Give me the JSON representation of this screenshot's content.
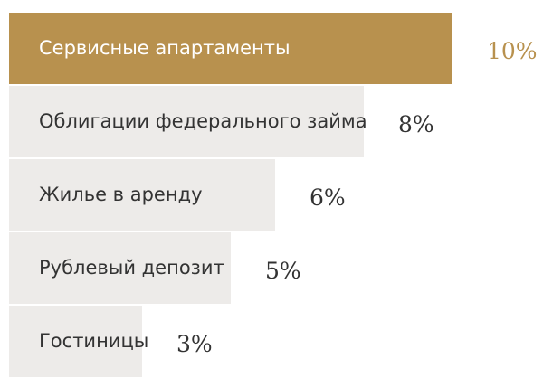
{
  "chart_data": {
    "type": "bar",
    "orientation": "horizontal",
    "categories": [
      "Сервисные апартаменты",
      "Облигации федерального займа",
      "Жилье в аренду",
      "Рублевый депозит",
      "Гостиницы"
    ],
    "values": [
      10,
      8,
      6,
      5,
      3
    ],
    "value_labels": [
      "10%",
      "8%",
      "6%",
      "5%",
      "3%"
    ],
    "highlight_index": 0,
    "colors": {
      "highlight_bar": "#b8914e",
      "bar": "#edebe9",
      "highlight_text": "#ffffff",
      "text": "#333333",
      "highlight_value": "#b8914e",
      "value": "#333333"
    }
  }
}
